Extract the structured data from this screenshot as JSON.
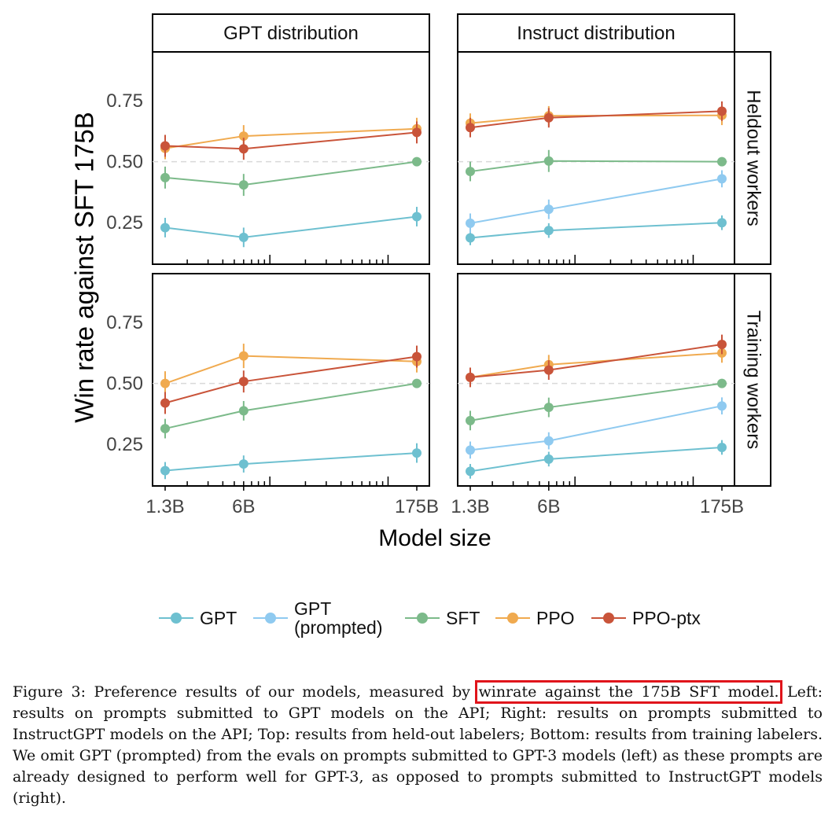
{
  "chart_data": {
    "type": "line",
    "ylabel": "Win rate against SFT 175B",
    "xlabel": "Model size",
    "x": [
      "1.3B",
      "6B",
      "175B"
    ],
    "x_scale": "log",
    "ylim": [
      0.08,
      0.95
    ],
    "yticks": [
      "0.25",
      "0.50",
      "0.75"
    ],
    "reference_line": 0.5,
    "col_strips": [
      "GPT distribution",
      "Instruct distribution"
    ],
    "row_strips": [
      "Heldout workers",
      "Training workers"
    ],
    "legend": {
      "position": "bottom",
      "entries": [
        "GPT",
        "GPT (prompted)",
        "SFT",
        "PPO",
        "PPO-ptx"
      ]
    },
    "colors": {
      "GPT": "#6ec0d0",
      "GPT (prompted)": "#8fcaf0",
      "SFT": "#7cba8a",
      "PPO": "#f0aa4f",
      "PPO-ptx": "#c9543a"
    },
    "panels": [
      {
        "col": "GPT distribution",
        "row": "Heldout workers",
        "series": [
          {
            "name": "GPT",
            "values": [
              0.23,
              0.19,
              0.275
            ],
            "err": [
              0.04,
              0.04,
              0.04
            ]
          },
          {
            "name": "SFT",
            "values": [
              0.435,
              0.405,
              0.5
            ],
            "err": [
              0.045,
              0.045,
              0.0
            ]
          },
          {
            "name": "PPO",
            "values": [
              0.555,
              0.605,
              0.635
            ],
            "err": [
              0.045,
              0.045,
              0.045
            ]
          },
          {
            "name": "PPO-ptx",
            "values": [
              0.565,
              0.553,
              0.62
            ],
            "err": [
              0.045,
              0.045,
              0.045
            ]
          }
        ]
      },
      {
        "col": "Instruct distribution",
        "row": "Heldout workers",
        "series": [
          {
            "name": "GPT",
            "values": [
              0.188,
              0.218,
              0.25
            ],
            "err": [
              0.03,
              0.03,
              0.03
            ]
          },
          {
            "name": "GPT (prompted)",
            "values": [
              0.248,
              0.305,
              0.43
            ],
            "err": [
              0.04,
              0.04,
              0.035
            ]
          },
          {
            "name": "SFT",
            "values": [
              0.46,
              0.503,
              0.5
            ],
            "err": [
              0.04,
              0.045,
              0.0
            ]
          },
          {
            "name": "PPO",
            "values": [
              0.658,
              0.688,
              0.69
            ],
            "err": [
              0.04,
              0.04,
              0.04
            ]
          },
          {
            "name": "PPO-ptx",
            "values": [
              0.64,
              0.68,
              0.707
            ],
            "err": [
              0.04,
              0.04,
              0.04
            ]
          }
        ]
      },
      {
        "col": "GPT distribution",
        "row": "Training workers",
        "series": [
          {
            "name": "GPT",
            "values": [
              0.143,
              0.17,
              0.215
            ],
            "err": [
              0.035,
              0.035,
              0.04
            ]
          },
          {
            "name": "SFT",
            "values": [
              0.315,
              0.388,
              0.5
            ],
            "err": [
              0.04,
              0.04,
              0.0
            ]
          },
          {
            "name": "PPO",
            "values": [
              0.5,
              0.613,
              0.59
            ],
            "err": [
              0.05,
              0.05,
              0.045
            ]
          },
          {
            "name": "PPO-ptx",
            "values": [
              0.42,
              0.508,
              0.61
            ],
            "err": [
              0.045,
              0.045,
              0.045
            ]
          }
        ]
      },
      {
        "col": "Instruct distribution",
        "row": "Training workers",
        "series": [
          {
            "name": "GPT",
            "values": [
              0.14,
              0.19,
              0.238
            ],
            "err": [
              0.03,
              0.03,
              0.03
            ]
          },
          {
            "name": "GPT (prompted)",
            "values": [
              0.227,
              0.265,
              0.408
            ],
            "err": [
              0.035,
              0.035,
              0.035
            ]
          },
          {
            "name": "SFT",
            "values": [
              0.348,
              0.402,
              0.5
            ],
            "err": [
              0.04,
              0.04,
              0.0
            ]
          },
          {
            "name": "PPO",
            "values": [
              0.525,
              0.577,
              0.625
            ],
            "err": [
              0.04,
              0.04,
              0.04
            ]
          },
          {
            "name": "PPO-ptx",
            "values": [
              0.525,
              0.555,
              0.66
            ],
            "err": [
              0.04,
              0.04,
              0.04
            ]
          }
        ]
      }
    ]
  },
  "caption": {
    "before": "Figure 3: Preference results of our models, measured by ",
    "highlight": "winrate against the 175B SFT model.",
    "after": " Left: results on prompts submitted to GPT models on the API; Right: results on prompts submitted to InstructGPT models on the API; Top: results from held-out labelers; Bottom: results from training labelers. We omit GPT (prompted) from the evals on prompts submitted to GPT-3 models (left) as these prompts are already designed to perform well for GPT-3, as opposed to prompts submitted to InstructGPT models (right)."
  }
}
